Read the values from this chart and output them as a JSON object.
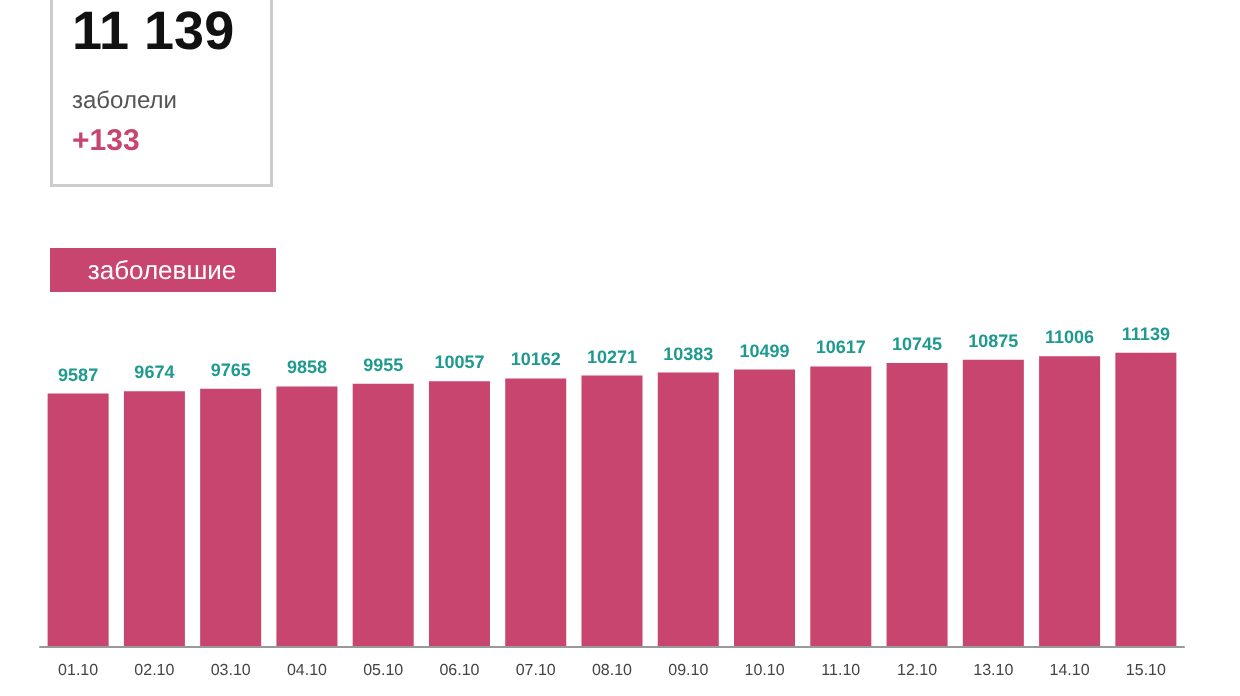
{
  "chart_data": {
    "type": "bar",
    "annotations": [
      "11 139",
      "заболели",
      "+133",
      "заболевшие"
    ],
    "categories": [
      "01.10",
      "02.10",
      "03.10",
      "04.10",
      "05.10",
      "06.10",
      "07.10",
      "08.10",
      "09.10",
      "10.10",
      "11.10",
      "12.10",
      "13.10",
      "14.10",
      "15.10"
    ],
    "values": [
      9587,
      9674,
      9765,
      9858,
      9955,
      10057,
      10162,
      10271,
      10383,
      10499,
      10617,
      10745,
      10875,
      11006,
      11139
    ],
    "color": "#c8456f",
    "data_labels": true
  }
}
